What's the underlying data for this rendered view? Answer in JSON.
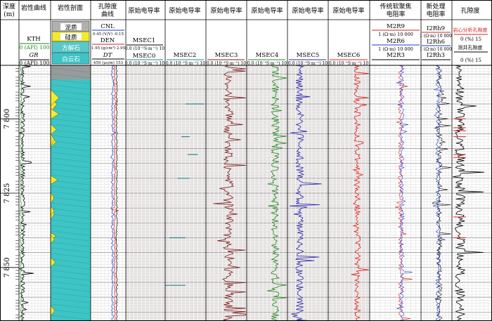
{
  "header": {
    "depth": [
      "深度",
      "(m)"
    ],
    "litho_curve": "岩性曲线",
    "profile": "岩性剖面",
    "porosity_curve": [
      "孔隙度",
      "曲线"
    ],
    "raw_cond": "原始电导率",
    "trad_resist": [
      "传统软聚焦",
      "电阻率"
    ],
    "new_resist": [
      "新处理",
      "电阻率"
    ],
    "porosity": "孔隙度"
  },
  "legend": {
    "litho_curve": [
      {
        "name": "KTH",
        "scale": "0 (API) 100",
        "color": "#1a8a1a"
      },
      {
        "name": "GR",
        "scale": "0 (API) 100",
        "color": "#000000"
      }
    ],
    "profile": [
      "泥质",
      "硅质",
      "方解石",
      "白云石"
    ],
    "porosity_curve": [
      {
        "name": "CNL",
        "scale": "0.45 (V/V) -0.15",
        "color": "#1a3ad6"
      },
      {
        "name": "DEN",
        "scale": "1.95 (g/cm³) 2.95",
        "color": "#d42020"
      },
      {
        "name": "DT",
        "scale": "459 (μs/m) 153",
        "color": "#000000"
      }
    ],
    "track5": {
      "curves": [
        "MSEC1",
        "MSEC0"
      ],
      "scale": "0.0 (10⁻¹S·m⁻¹) 10"
    },
    "track6": {
      "curves": [
        "MSEC2"
      ],
      "scale": "0.0 (10⁻¹S·m⁻¹) 10"
    },
    "track7": {
      "curves": [
        "MSEC3"
      ],
      "scale": "0.0 (10⁻¹S·m⁻¹) 10"
    },
    "track8": {
      "curves": [
        "MSEC4"
      ],
      "scale": "0.0 (10⁻¹S·m⁻¹) 10"
    },
    "track9": {
      "curves": [
        "MSEC5"
      ],
      "scale": "0.0 (10⁻¹S·m⁻¹) 10"
    },
    "track10": {
      "curves": [
        "MSEC6"
      ],
      "scale": "0.0 (10⁻¹S·m⁻¹) 10"
    },
    "trad": [
      {
        "name": "M2R9",
        "scale": "1 (Ω·m) 10 000",
        "color": "#d42020"
      },
      {
        "name": "M2R6",
        "scale": "1 (Ω·m) 10 000",
        "color": "#1a3ad6"
      },
      {
        "name": "M2R3",
        "scale": "",
        "color": "#000000"
      }
    ],
    "newres": [
      {
        "name": "I2Rh9",
        "scale": "1 (Ω·m) 10 000",
        "color": "#d42020"
      },
      {
        "name": "I2Rh6",
        "scale": "1 (Ω·m) 10 000",
        "color": "#1a3ad6"
      },
      {
        "name": "I2Rh3",
        "scale": "",
        "color": "#000000"
      }
    ],
    "poro": [
      {
        "name": "岩心分析孔隙度",
        "scale": "0 (%) 15",
        "color": "#d42020"
      },
      {
        "name": "测井孔隙度",
        "scale": "0 (%) 15",
        "color": "#000000"
      }
    ]
  },
  "chart_data": {
    "type": "line",
    "x_unit": "m",
    "depth_range": [
      7782,
      7868
    ],
    "depth_ticks": [
      7800,
      7825,
      7850
    ],
    "depth_tick_labels": [
      "7 800",
      "7 825",
      "7 850"
    ],
    "samples": 120,
    "colors": {
      "msec2": "#1a8a8a",
      "msec3": "#7a1e1e",
      "msec4": "#1e8a1e",
      "msec5": "#2a2aa8",
      "msec6": "#e02020"
    },
    "profile_fill": "#3ec4c4",
    "profile_top_fill": "#9a9a9a"
  }
}
